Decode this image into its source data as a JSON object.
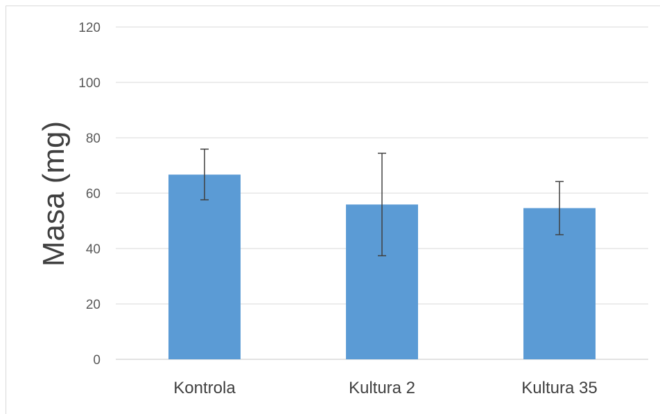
{
  "chart_data": {
    "type": "bar",
    "title": "",
    "xlabel": "",
    "ylabel": "Masa (mg)",
    "categories": [
      "Kontrola",
      "Kultura 2",
      "Kultura 35"
    ],
    "values": [
      66.7,
      55.9,
      54.6
    ],
    "error_low": [
      57.6,
      37.4,
      45.0
    ],
    "error_high": [
      75.9,
      74.4,
      64.2
    ],
    "ylim": [
      0,
      120
    ],
    "yticks": [
      "0",
      "20",
      "40",
      "60",
      "80",
      "100",
      "120"
    ],
    "grid": true,
    "legend": "none",
    "colors": {
      "bar": "#5b9bd5",
      "error": "#404040",
      "grid": "#d9d9d9"
    }
  }
}
